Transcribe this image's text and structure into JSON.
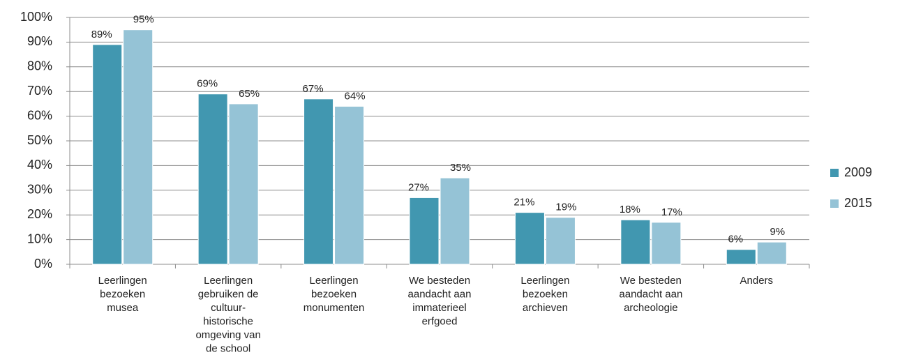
{
  "chart_data": {
    "type": "bar",
    "categories": [
      [
        "Leerlingen",
        "bezoeken",
        "musea"
      ],
      [
        "Leerlingen",
        "gebruiken de",
        "cultuur-",
        "historische",
        "omgeving van",
        "de school"
      ],
      [
        "Leerlingen",
        "bezoeken",
        "monumenten"
      ],
      [
        "We besteden",
        "aandacht aan",
        "immaterieel",
        "erfgoed"
      ],
      [
        "Leerlingen",
        "bezoeken",
        "archieven"
      ],
      [
        "We besteden",
        "aandacht aan",
        "archeologie"
      ],
      [
        "Anders"
      ]
    ],
    "series": [
      {
        "name": "2009",
        "color": "#4197b0",
        "values": [
          89,
          69,
          67,
          27,
          21,
          18,
          6
        ],
        "value_labels": [
          "89%",
          "69%",
          "67%",
          "27%",
          "21%",
          "18%",
          "6%"
        ]
      },
      {
        "name": "2015",
        "color": "#95c3d6",
        "values": [
          95,
          65,
          64,
          35,
          19,
          17,
          9
        ],
        "value_labels": [
          "95%",
          "65%",
          "64%",
          "35%",
          "19%",
          "17%",
          "9%"
        ]
      }
    ],
    "ylim": [
      0,
      100
    ],
    "yticks": [
      {
        "value": 0,
        "label": "0%"
      },
      {
        "value": 10,
        "label": "10%"
      },
      {
        "value": 20,
        "label": "20%"
      },
      {
        "value": 30,
        "label": "30%"
      },
      {
        "value": 40,
        "label": "40%"
      },
      {
        "value": 50,
        "label": "50%"
      },
      {
        "value": 60,
        "label": "60%"
      },
      {
        "value": 70,
        "label": "70%"
      },
      {
        "value": 80,
        "label": "80%"
      },
      {
        "value": 90,
        "label": "90%"
      },
      {
        "value": 100,
        "label": "100%"
      }
    ],
    "grid": true,
    "legend": "right"
  }
}
